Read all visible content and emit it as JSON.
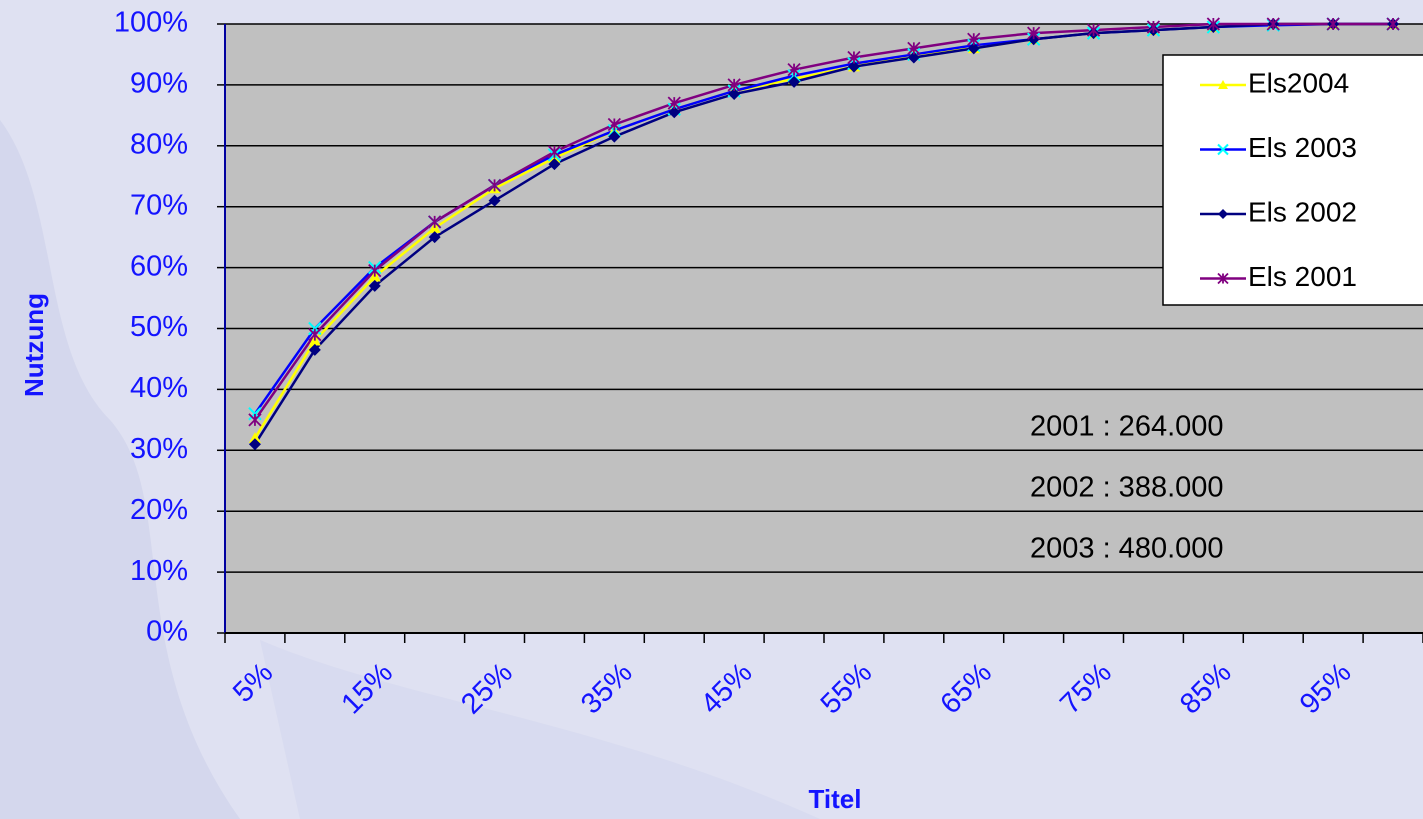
{
  "chart_data": {
    "type": "line",
    "x_label": "Titel",
    "y_label": "Nutzung",
    "categories": [
      "5%",
      null,
      "15%",
      null,
      "25%",
      null,
      "35%",
      null,
      "45%",
      null,
      "55%",
      null,
      "65%",
      null,
      "75%",
      null,
      "85%",
      null,
      "95%",
      null
    ],
    "series": [
      {
        "name": "Els2004",
        "color": "#ffff00",
        "marker_color": "#ffff00",
        "marker": "triangle",
        "values": [
          32,
          48,
          58.5,
          66.5,
          73,
          78,
          82.5,
          86,
          89,
          91,
          93,
          95,
          96,
          97.5,
          98.5,
          99,
          99.5,
          100,
          100,
          100
        ]
      },
      {
        "name": "Els 2003",
        "color": "#0000ff",
        "marker_color": "#00ffff",
        "marker": "x",
        "values": [
          36,
          50,
          60,
          67.5,
          73.5,
          78.5,
          82.5,
          86,
          89,
          91.5,
          93.5,
          95,
          96.5,
          97.5,
          98.5,
          99,
          99.5,
          99.8,
          100,
          100
        ]
      },
      {
        "name": "Els 2002",
        "color": "#000080",
        "marker_color": "#000080",
        "marker": "diamond",
        "values": [
          31,
          46.5,
          57,
          65,
          71,
          77,
          81.5,
          85.5,
          88.5,
          90.5,
          93,
          94.5,
          96,
          97.5,
          98.5,
          99,
          99.5,
          100,
          100,
          100
        ]
      },
      {
        "name": "Els 2001",
        "color": "#800080",
        "marker_color": "#800080",
        "marker": "star",
        "values": [
          35,
          49,
          59.5,
          67.5,
          73.5,
          79,
          83.5,
          87,
          90,
          92.5,
          94.5,
          96,
          97.5,
          98.5,
          99,
          99.5,
          100,
          100,
          100,
          100
        ]
      }
    ],
    "ylim": [
      0,
      100
    ],
    "yticks": [
      {
        "value": 0,
        "label": "0%"
      },
      {
        "value": 10,
        "label": "10%"
      },
      {
        "value": 20,
        "label": "20%"
      },
      {
        "value": 30,
        "label": "30%"
      },
      {
        "value": 40,
        "label": "40%"
      },
      {
        "value": 50,
        "label": "50%"
      },
      {
        "value": 60,
        "label": "60%"
      },
      {
        "value": 70,
        "label": "70%"
      },
      {
        "value": 80,
        "label": "80%"
      },
      {
        "value": 90,
        "label": "90%"
      },
      {
        "value": 100,
        "label": "100%"
      }
    ],
    "grid": true,
    "legend": "upper right",
    "annotations": [
      "2001 : 264.000",
      "2002 : 388.000",
      "2003 : 480.000"
    ]
  }
}
